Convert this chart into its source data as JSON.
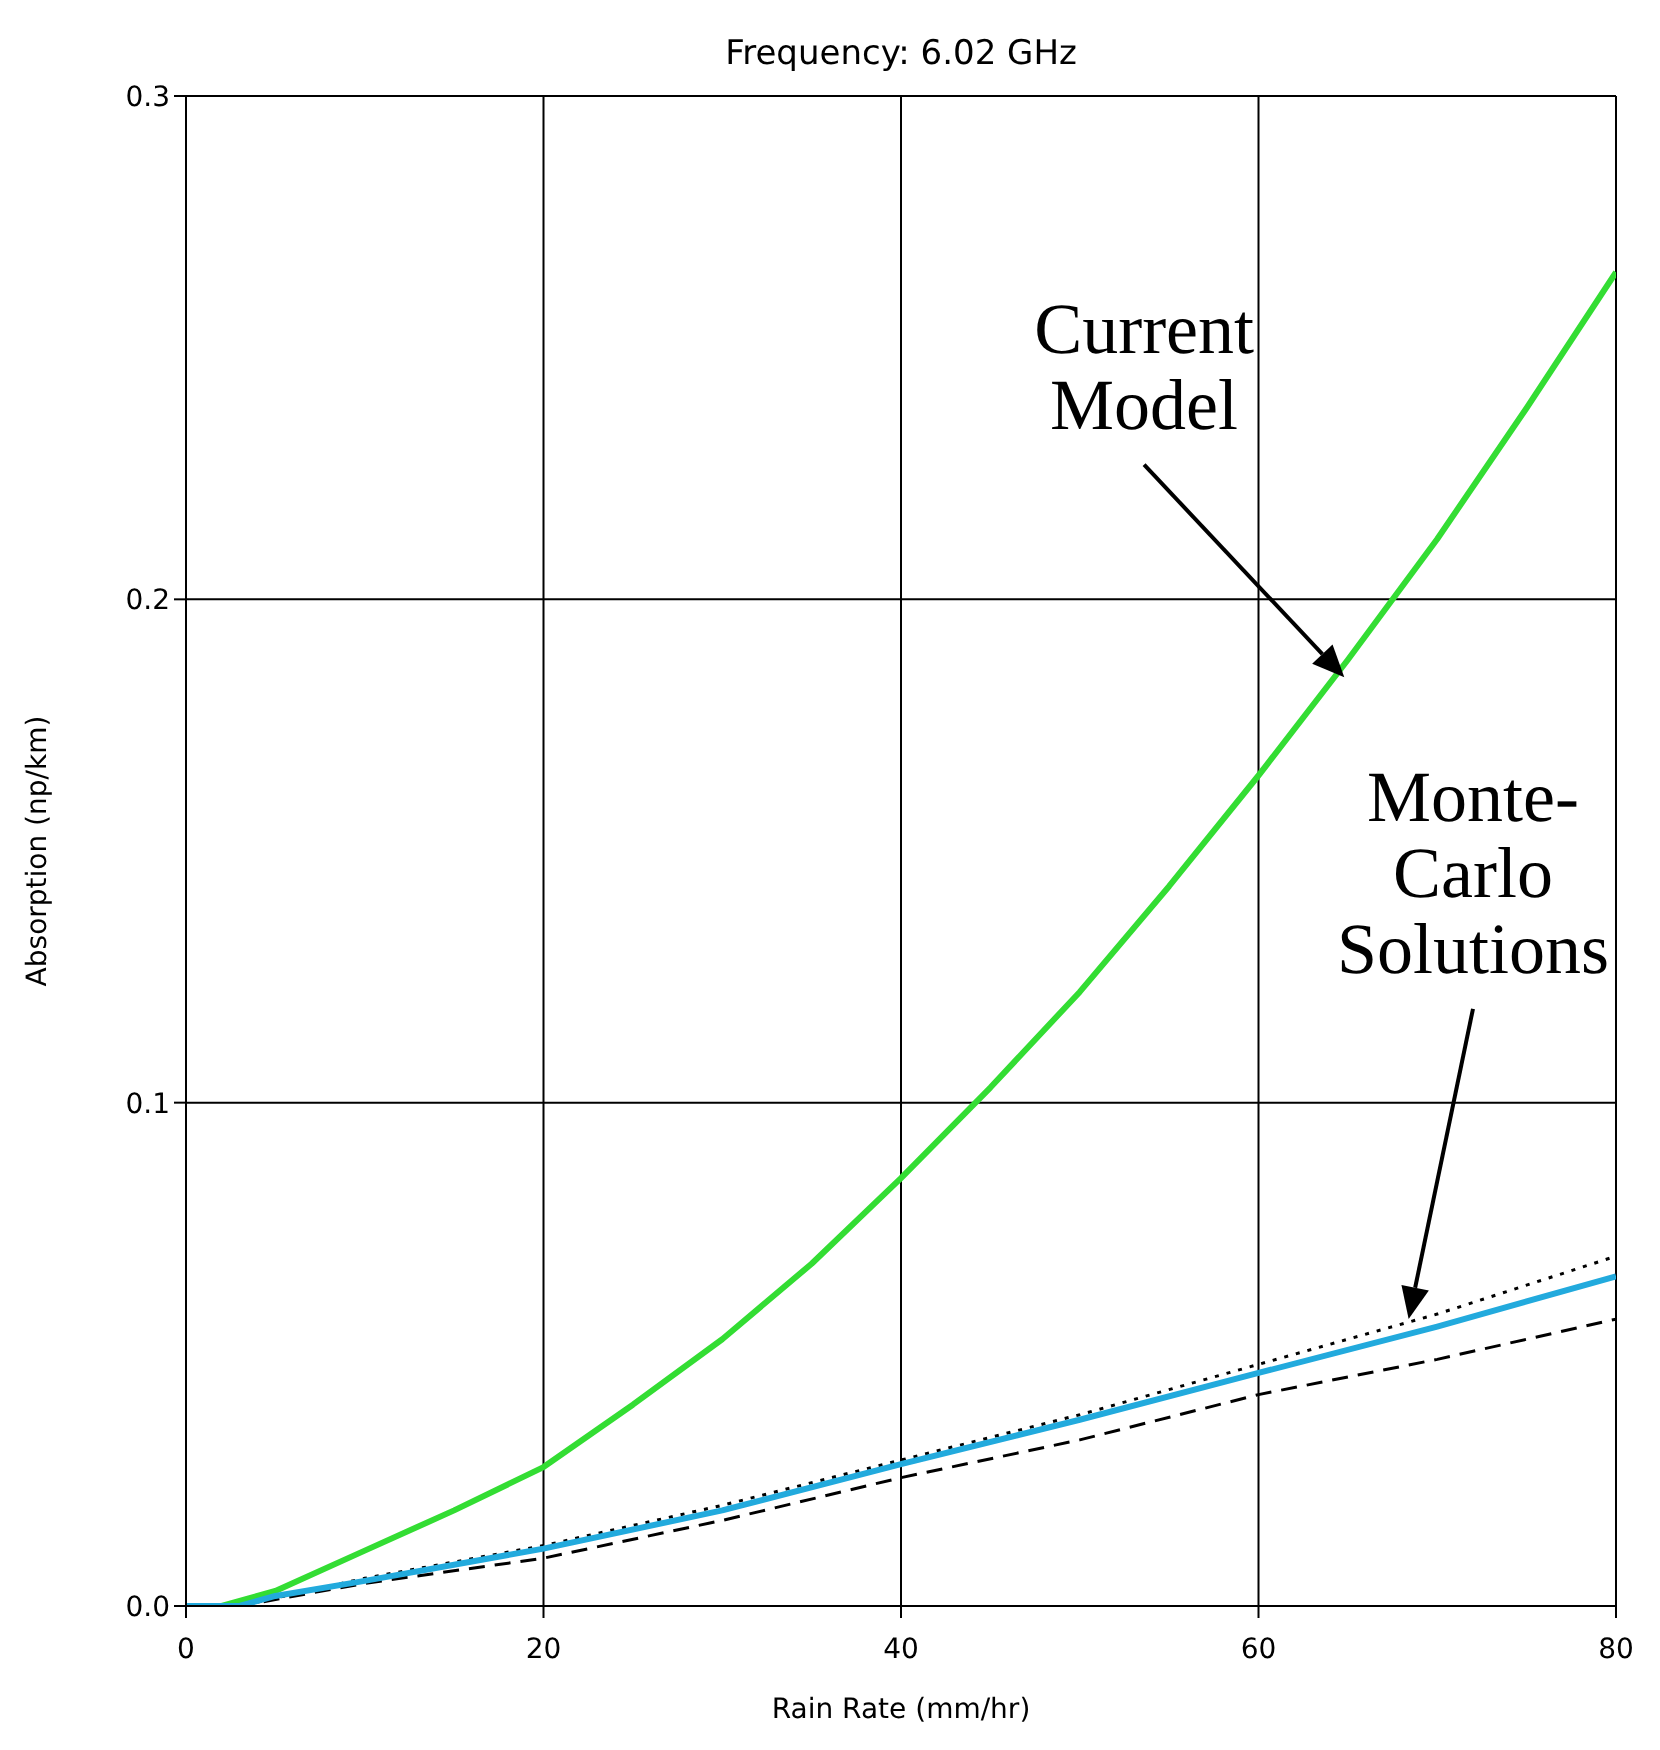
{
  "chart_data": {
    "type": "line",
    "title": "Frequency: 6.02 GHz",
    "xlabel": "Rain Rate (mm/hr)",
    "ylabel": "Absorption (np/km)",
    "xlim": [
      0,
      80
    ],
    "xticks": [
      0,
      20,
      40,
      60,
      80
    ],
    "ylim": [
      0,
      0.3
    ],
    "yticks": [
      {
        "value": 0,
        "label": "0.0"
      },
      0.1,
      0.2,
      0.3
    ],
    "grid": true,
    "marker": "none",
    "series": [
      {
        "color": "#33dd33",
        "line_style": "solid",
        "x": [
          0,
          2,
          5,
          10,
          15,
          20,
          25,
          30,
          35,
          40,
          45,
          50,
          55,
          60,
          65,
          70,
          75,
          80
        ],
        "values": [
          0,
          0,
          0.003,
          0.011,
          0.019,
          0.0276,
          0.04,
          0.053,
          0.068,
          0.085,
          0.103,
          0.122,
          0.143,
          0.165,
          0.188,
          0.212,
          0.238,
          0.265
        ]
      },
      {
        "color": "#000000",
        "line_style": "dotted",
        "x": [
          0,
          3,
          10,
          20,
          30,
          40,
          50,
          60,
          70,
          80
        ],
        "values": [
          0,
          0,
          0.0055,
          0.012,
          0.02,
          0.029,
          0.038,
          0.048,
          0.058,
          0.0695
        ]
      },
      {
        "color": "#000000",
        "line_style": "dashed",
        "x": [
          0,
          3,
          10,
          20,
          30,
          40,
          50,
          60,
          70,
          80
        ],
        "values": [
          0,
          0,
          0.0045,
          0.0095,
          0.017,
          0.0255,
          0.033,
          0.042,
          0.049,
          0.057
        ]
      },
      {
        "color": "#22aadd",
        "line_style": "solid",
        "x": [
          0,
          3,
          5,
          10,
          20,
          30,
          40,
          50,
          60,
          70,
          80
        ],
        "values": [
          0,
          0,
          0.002,
          0.005,
          0.0114,
          0.019,
          0.0282,
          0.037,
          0.0463,
          0.0555,
          0.0655
        ]
      }
    ],
    "annotations": [
      "Current Model",
      "Monte-Carlo Solutions"
    ]
  }
}
